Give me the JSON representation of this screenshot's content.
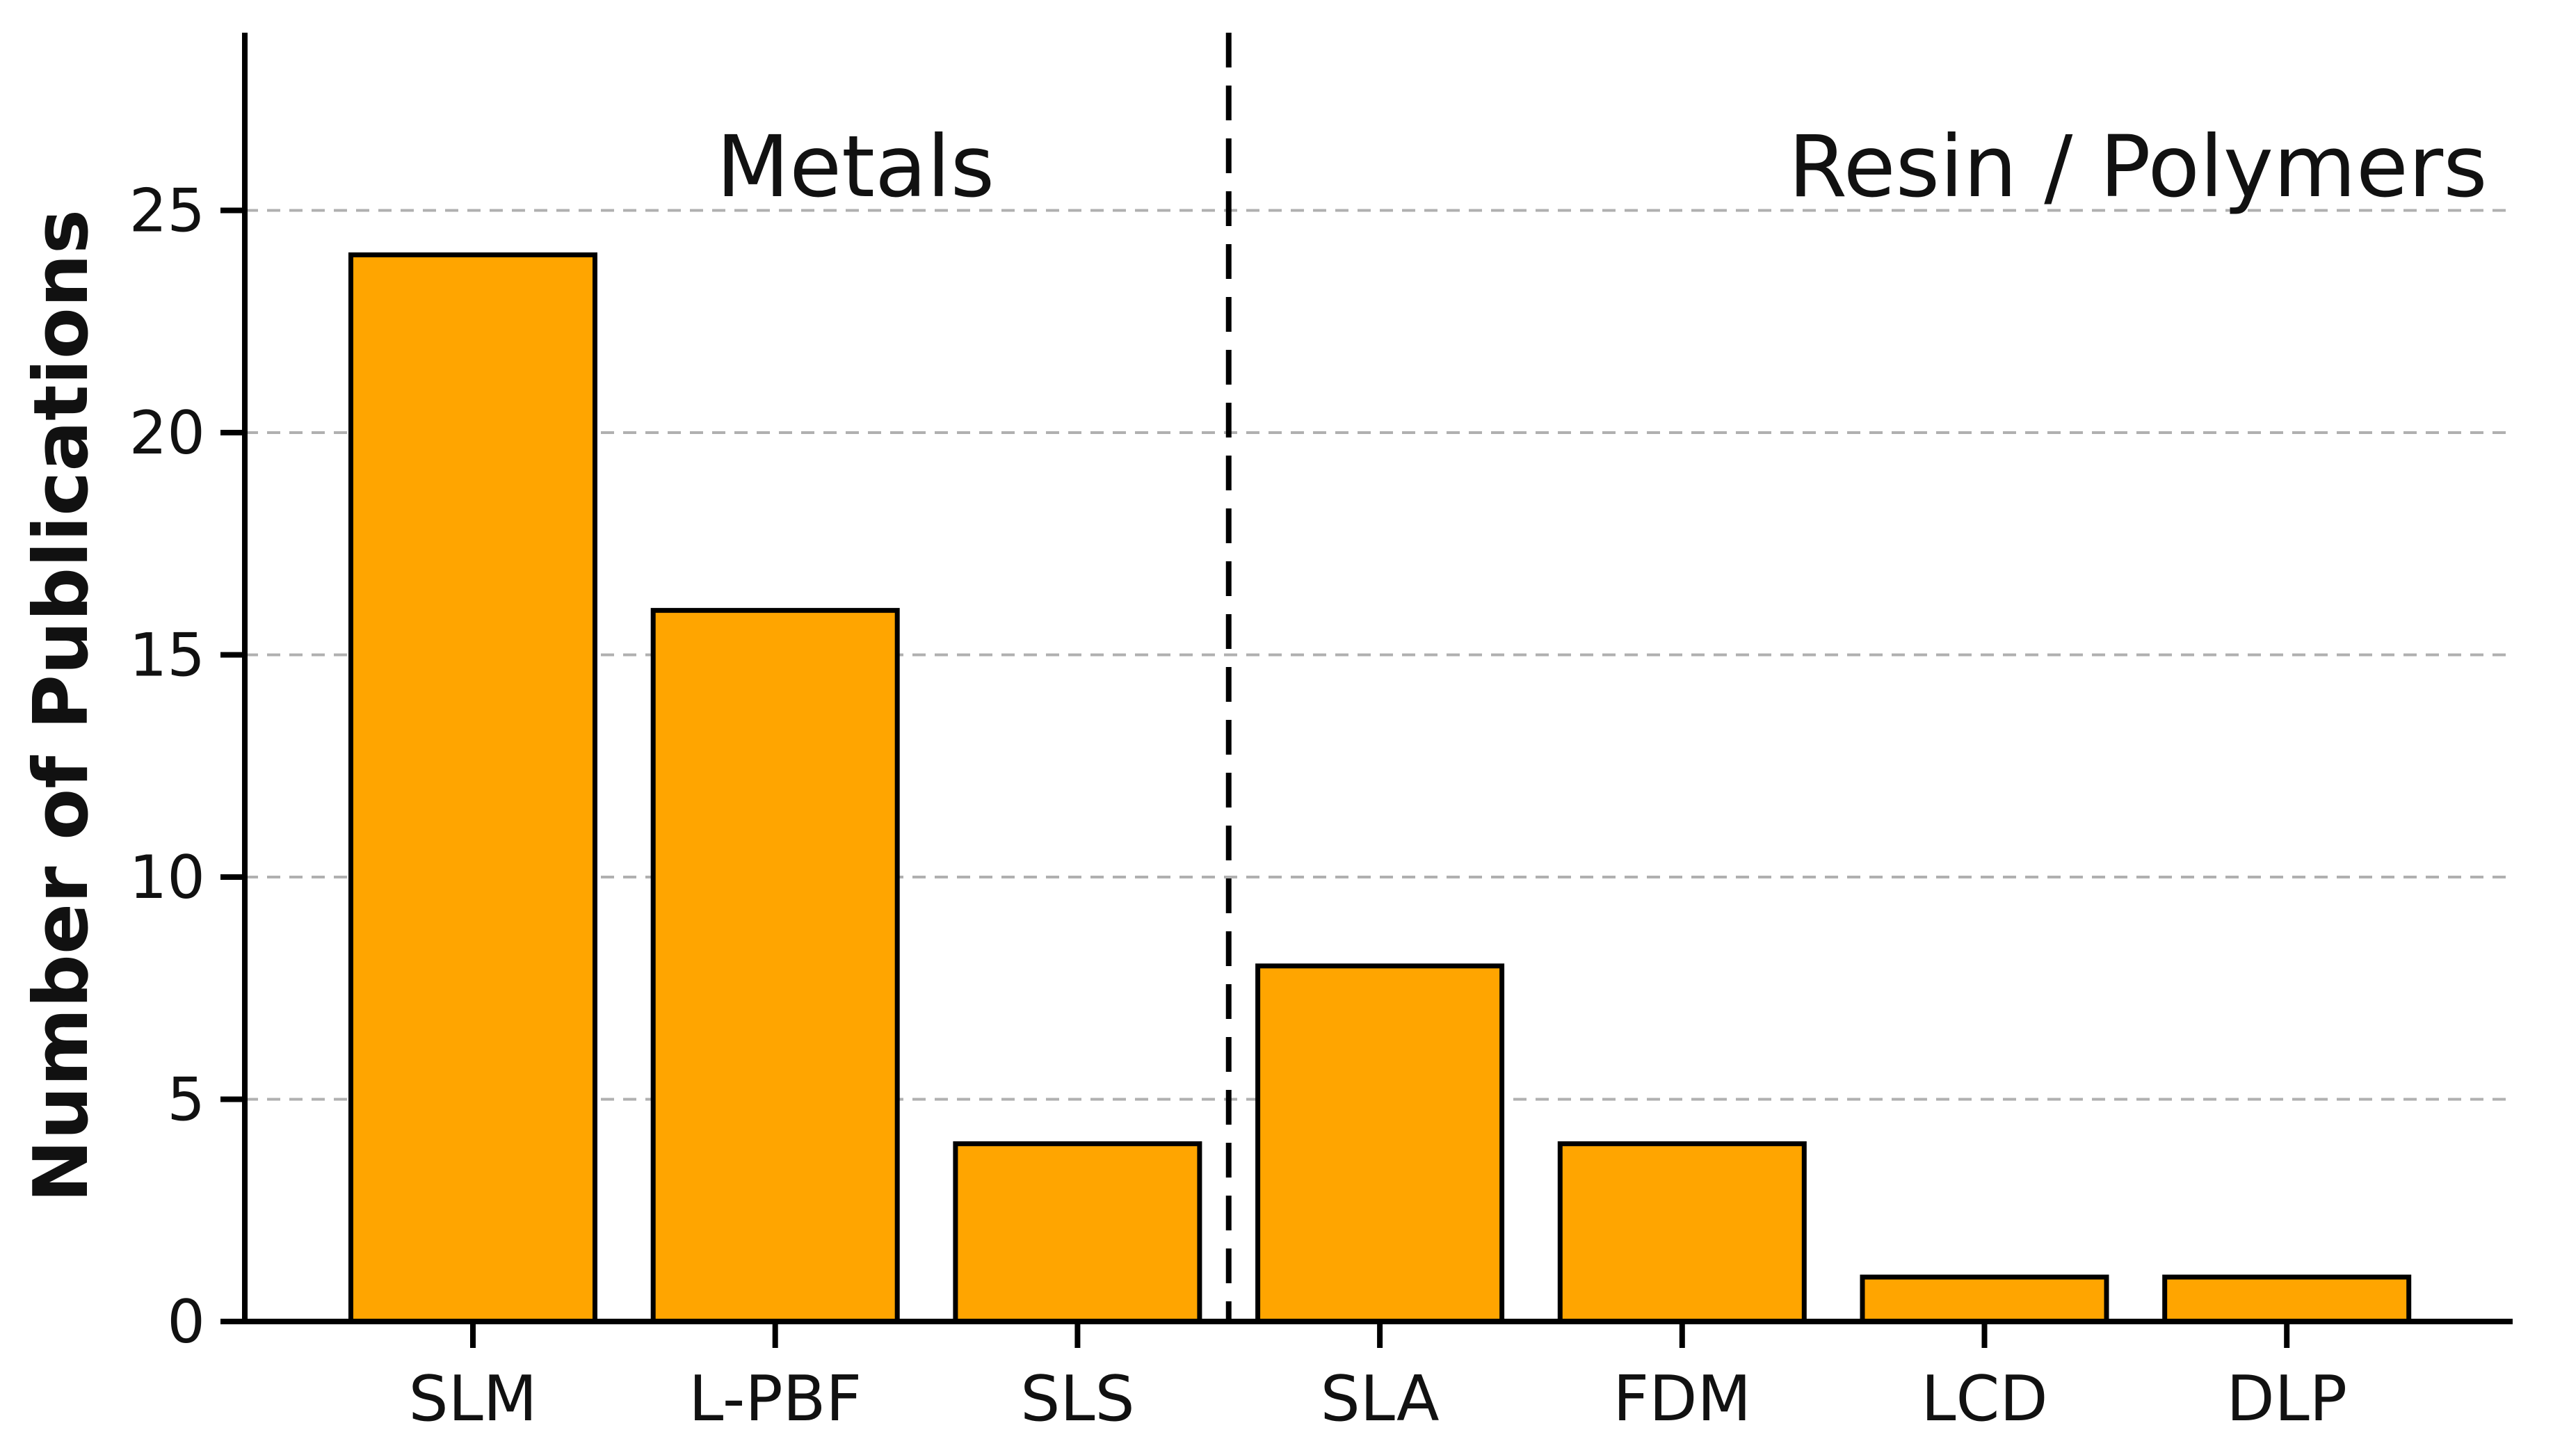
{
  "chart_data": {
    "type": "bar",
    "title": "",
    "categories": [
      "SLM",
      "L-PBF",
      "SLS",
      "SLA",
      "FDM",
      "LCD",
      "DLP"
    ],
    "values": [
      24,
      16,
      4,
      8,
      4,
      1,
      1
    ],
    "xlabel": "",
    "ylabel": "Number of Publications",
    "ylim": [
      0,
      29
    ],
    "yticks": [
      0,
      5,
      10,
      15,
      20,
      25
    ],
    "grid": "horizontal dashed gridlines at y ticks, drawn behind bars",
    "legend": "none",
    "bar_color": "#FFA500",
    "bar_edge_color": "#000000",
    "grid_color": "#b0b0b0",
    "separator": {
      "style": "vertical dashed line",
      "color": "#000000",
      "position_between": [
        "SLS",
        "SLA"
      ]
    },
    "annotations": [
      {
        "text": "Metals",
        "section": "left of separator"
      },
      {
        "text": "Resin / Polymers",
        "section": "right of separator"
      }
    ]
  }
}
